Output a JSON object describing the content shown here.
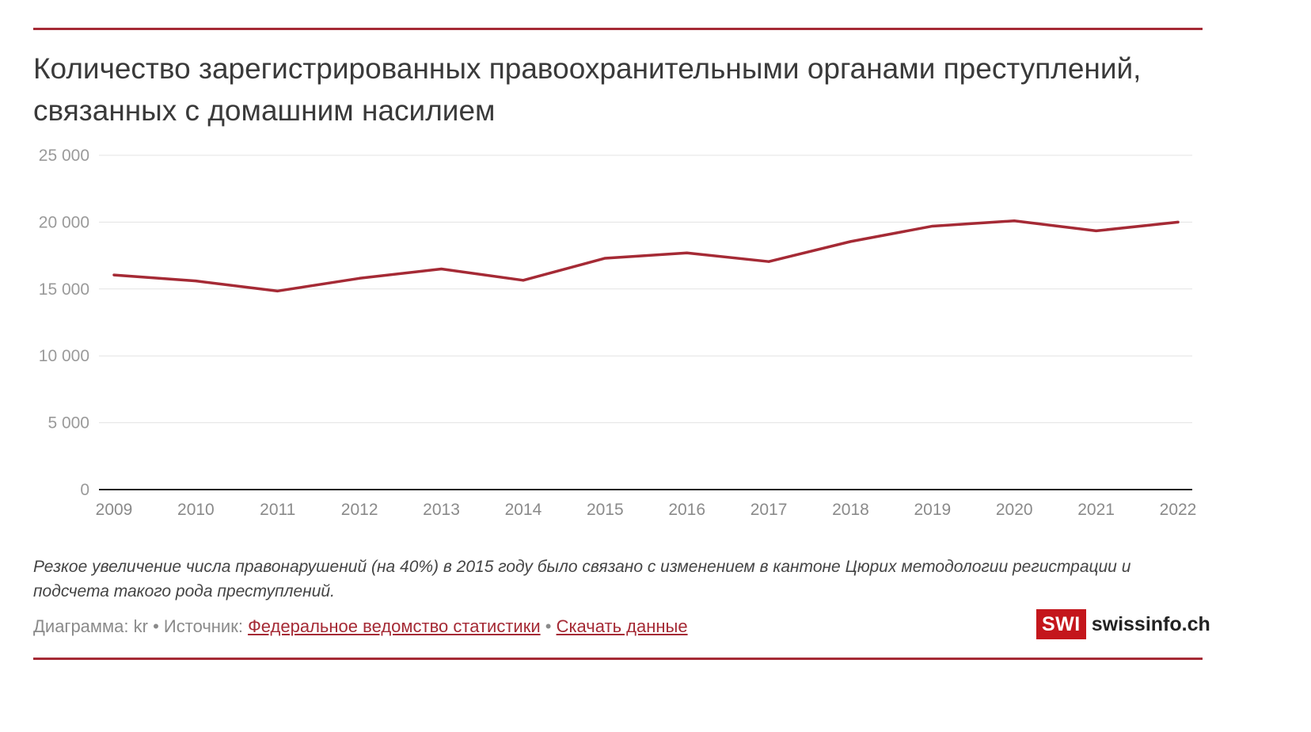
{
  "title": "Количество зарегистрированных правоохранительными органами преступлений, связанных с домашним насилием",
  "chart_data": {
    "type": "line",
    "x": [
      "2009",
      "2010",
      "2011",
      "2012",
      "2013",
      "2014",
      "2015",
      "2016",
      "2017",
      "2018",
      "2019",
      "2020",
      "2021",
      "2022"
    ],
    "series": [
      {
        "values": [
          16050,
          15600,
          14850,
          15800,
          16500,
          15650,
          17300,
          17700,
          17050,
          18550,
          19700,
          20100,
          19350,
          20000
        ]
      }
    ],
    "ylim": [
      0,
      25000
    ],
    "yticks": [
      0,
      5000,
      10000,
      15000,
      20000,
      25000
    ],
    "ytick_labels": [
      "0",
      "5 000",
      "10 000",
      "15 000",
      "20 000",
      "25 000"
    ],
    "grid": true,
    "line_color": "#a52a35"
  },
  "note": "Резкое увеличение числа правонарушений (на 40%) в 2015 году было связано с изменением в кантоне Цюрих методологии регистрации и подсчета такого рода преступлений.",
  "footer": {
    "credit": "Диаграмма: kr",
    "source_prefix": "Источник:",
    "source_link": "Федеральное ведомство статистики",
    "download_link": "Скачать данные"
  },
  "logo": {
    "mark": "SWI",
    "name": "swissinfo.ch"
  }
}
